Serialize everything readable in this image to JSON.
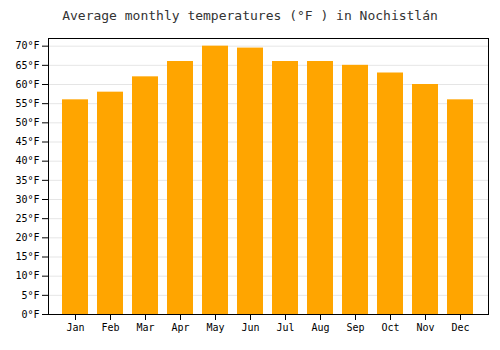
{
  "chart_data": {
    "type": "bar",
    "title": "Average monthly temperatures (°F ) in Nochistlán",
    "categories": [
      "Jan",
      "Feb",
      "Mar",
      "Apr",
      "May",
      "Jun",
      "Jul",
      "Aug",
      "Sep",
      "Oct",
      "Nov",
      "Dec"
    ],
    "values": [
      56,
      58,
      62,
      66,
      70,
      69.5,
      66,
      66,
      65,
      63,
      60,
      56
    ],
    "color": "#FFA500",
    "ylim": [
      0,
      72
    ],
    "yticks": [
      {
        "value": 0,
        "label": "0°F"
      },
      {
        "value": 5,
        "label": "5°F"
      },
      {
        "value": 10,
        "label": "10°F"
      },
      {
        "value": 15,
        "label": "15°F"
      },
      {
        "value": 20,
        "label": "20°F"
      },
      {
        "value": 25,
        "label": "25°F"
      },
      {
        "value": 30,
        "label": "30°F"
      },
      {
        "value": 35,
        "label": "35°F"
      },
      {
        "value": 40,
        "label": "40°F"
      },
      {
        "value": 45,
        "label": "45°F"
      },
      {
        "value": 50,
        "label": "50°F"
      },
      {
        "value": 55,
        "label": "55°F"
      },
      {
        "value": 60,
        "label": "60°F"
      },
      {
        "value": 65,
        "label": "65°F"
      },
      {
        "value": 70,
        "label": "70°F"
      }
    ],
    "grid": true
  }
}
